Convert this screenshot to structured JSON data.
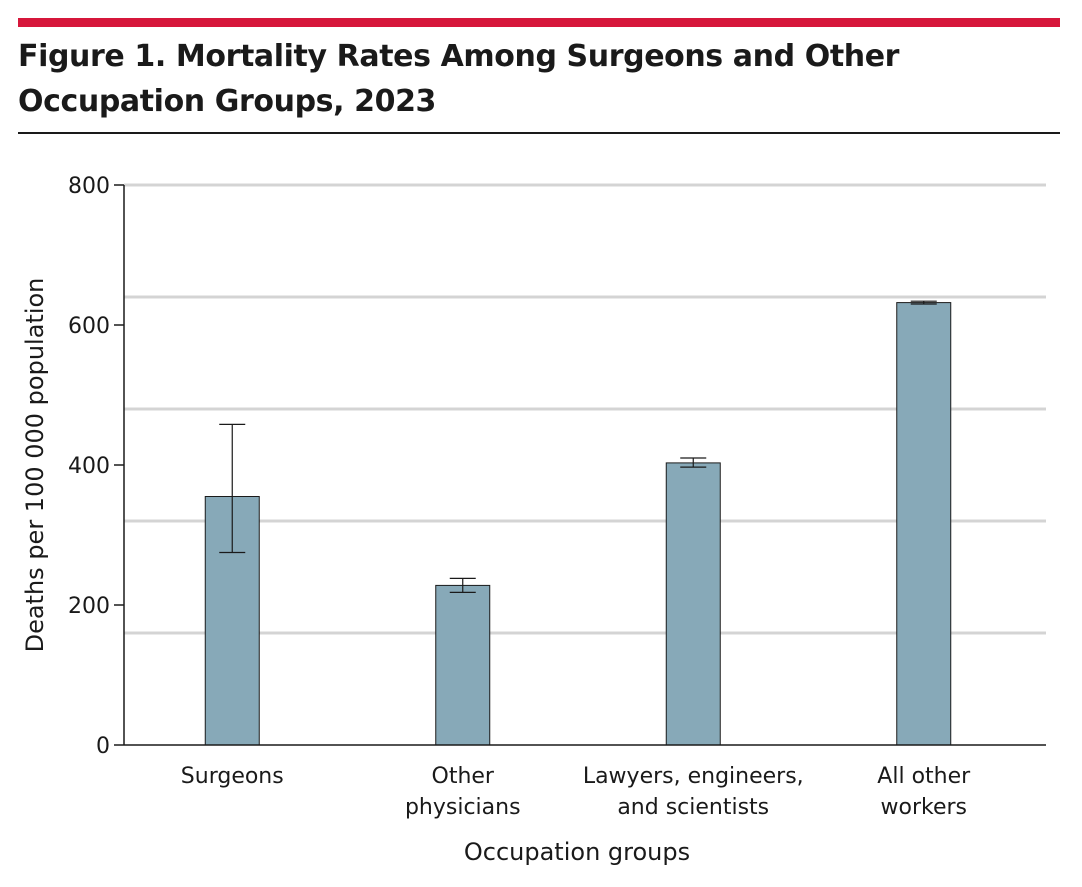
{
  "figure": {
    "title": "Figure 1. Mortality Rates Among Surgeons and Other Occupation Groups, 2023",
    "accent_color": "#d6173b"
  },
  "chart_data": {
    "type": "bar",
    "categories": [
      [
        "Surgeons"
      ],
      [
        "Other",
        "physicians"
      ],
      [
        "Lawyers, engineers,",
        "and scientists"
      ],
      [
        "All other",
        "workers"
      ]
    ],
    "values": [
      355,
      228,
      403,
      632
    ],
    "error_low": [
      275,
      218,
      397,
      630
    ],
    "error_high": [
      458,
      238,
      410,
      634
    ],
    "xlabel": "Occupation groups",
    "ylabel": "Deaths per 100 000 population",
    "ylim": [
      0,
      800
    ],
    "yticks": [
      "0",
      "200",
      "400",
      "600",
      "800"
    ],
    "gridlines": [
      160,
      320,
      480,
      640,
      800
    ],
    "grid": true,
    "bar_color": "#87a9b8",
    "legend": "none"
  }
}
